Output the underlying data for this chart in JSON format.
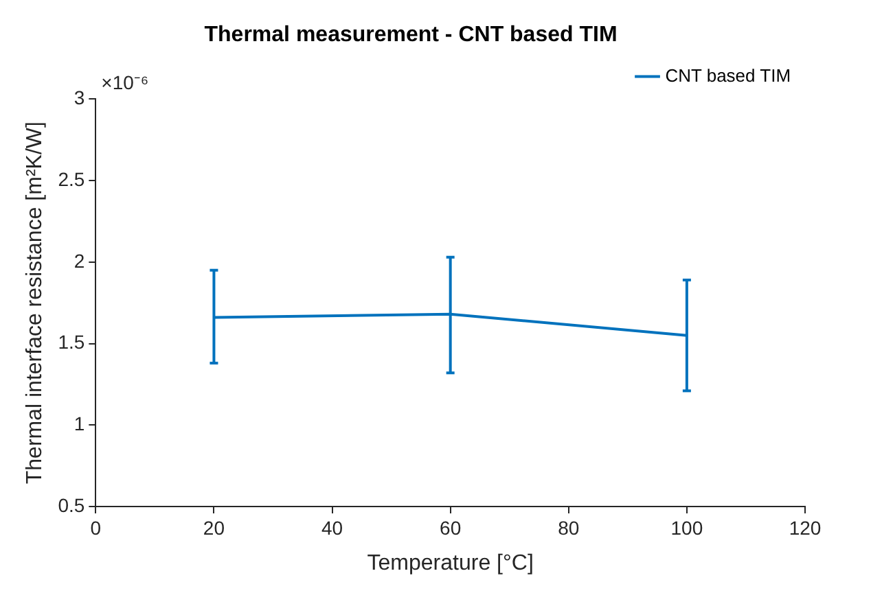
{
  "chart_data": {
    "type": "line",
    "title": "Thermal measurement - CNT based TIM",
    "xlabel": "Temperature [°C]",
    "ylabel": "Thermal interface resistance [m²K/W]",
    "annotations": [
      "×10⁻⁶"
    ],
    "x": [
      20,
      60,
      100
    ],
    "series": [
      {
        "name": "CNT based TIM",
        "color": "#0072bd",
        "values": [
          1.66,
          1.68,
          1.55
        ],
        "errors": [
          [
            1.38,
            1.95
          ],
          [
            1.32,
            2.03
          ],
          [
            1.21,
            1.89
          ]
        ]
      }
    ],
    "xlim": [
      0,
      120
    ],
    "xticks": [
      0,
      20,
      40,
      60,
      80,
      100,
      120
    ],
    "ylim": [
      0.5,
      3
    ],
    "yticks": [
      0.5,
      1,
      1.5,
      2,
      2.5,
      3
    ],
    "grid": false,
    "legend": "top right",
    "marker": "none",
    "line_style": "solid"
  }
}
